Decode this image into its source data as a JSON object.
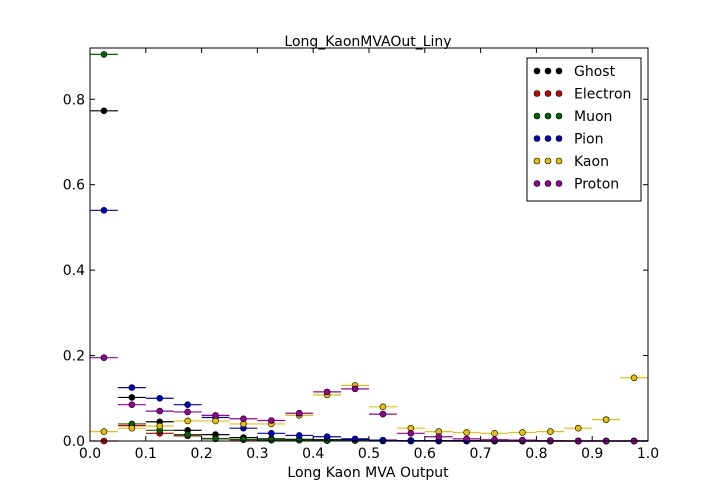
{
  "chart_data": {
    "type": "scatter",
    "title": "Long_KaonMVAOut_Liny",
    "xlabel": "Long Kaon MVA Output",
    "ylabel": "",
    "xlim": [
      0.0,
      1.0
    ],
    "ylim": [
      0.0,
      0.92
    ],
    "xticks": [
      "0.0",
      "0.1",
      "0.2",
      "0.3",
      "0.4",
      "0.5",
      "0.6",
      "0.7",
      "0.8",
      "0.9",
      "1.0"
    ],
    "yticks": [
      "0.0",
      "0.2",
      "0.4",
      "0.6",
      "0.8"
    ],
    "legend_position": "top-right",
    "bin_width": 0.05,
    "x": [
      0.025,
      0.075,
      0.125,
      0.175,
      0.225,
      0.275,
      0.325,
      0.375,
      0.425,
      0.475,
      0.525,
      0.575,
      0.625,
      0.675,
      0.725,
      0.775,
      0.825,
      0.875,
      0.925,
      0.975
    ],
    "series": [
      {
        "name": "Ghost",
        "color": "#000000",
        "values": [
          0.773,
          0.102,
          0.045,
          0.025,
          0.015,
          0.008,
          0.005,
          0.004,
          0.003,
          0.002,
          0.001,
          0.001,
          0.001,
          0.001,
          0.0,
          0.0,
          0.0,
          0.0,
          0.0,
          0.0
        ]
      },
      {
        "name": "Electron",
        "color": "#cc0000",
        "values": [
          0.0,
          0.036,
          0.018,
          0.012,
          0.006,
          0.003,
          0.002,
          0.002,
          0.001,
          0.001,
          0.001,
          0.0,
          0.0,
          0.0,
          0.0,
          0.0,
          0.0,
          0.0,
          0.0,
          0.0
        ]
      },
      {
        "name": "Muon",
        "color": "#006400",
        "values": [
          0.905,
          0.04,
          0.025,
          0.015,
          0.005,
          0.004,
          0.003,
          0.002,
          0.001,
          0.001,
          0.0,
          0.0,
          0.0,
          0.0,
          0.0,
          0.0,
          0.0,
          0.0,
          0.0,
          0.0
        ]
      },
      {
        "name": "Pion",
        "color": "#0000cc",
        "values": [
          0.54,
          0.125,
          0.1,
          0.085,
          0.055,
          0.03,
          0.018,
          0.013,
          0.01,
          0.005,
          0.002,
          0.001,
          0.001,
          0.0,
          0.0,
          0.0,
          0.0,
          0.0,
          0.0,
          0.0
        ]
      },
      {
        "name": "Kaon",
        "color": "#e8c000",
        "values": [
          0.022,
          0.03,
          0.035,
          0.047,
          0.047,
          0.04,
          0.04,
          0.06,
          0.108,
          0.13,
          0.08,
          0.03,
          0.022,
          0.02,
          0.018,
          0.02,
          0.022,
          0.03,
          0.05,
          0.148
        ]
      },
      {
        "name": "Proton",
        "color": "#990099",
        "values": [
          0.195,
          0.085,
          0.07,
          0.068,
          0.06,
          0.052,
          0.048,
          0.065,
          0.115,
          0.122,
          0.063,
          0.018,
          0.01,
          0.005,
          0.003,
          0.002,
          0.001,
          0.0,
          0.0,
          0.0
        ]
      }
    ]
  }
}
